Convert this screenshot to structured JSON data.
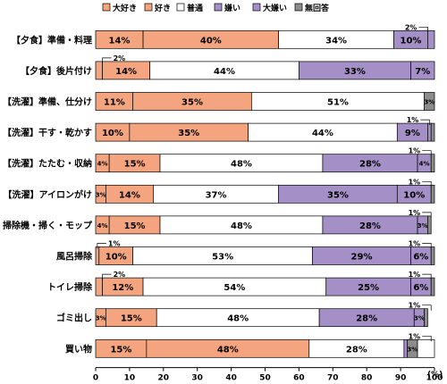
{
  "chart_data": {
    "type": "bar",
    "orientation": "horizontal",
    "stacked": true,
    "categories": [
      "【夕食】準備・料理",
      "【夕食】後片付け",
      "【洗濯】準備、仕分け",
      "【洗濯】干す・乾かす",
      "【洗濯】たたむ・収納",
      "【洗濯】アイロンがけ",
      "掃除機・掃く・モップ",
      "風呂掃除",
      "トイレ掃除",
      "ゴミ出し",
      "買い物"
    ],
    "series": [
      {
        "name": "大好き",
        "color": "#f4a47f",
        "values": [
          14,
          2,
          0,
          1,
          0,
          0,
          0,
          1,
          2,
          0,
          0
        ]
      },
      {
        "name": "好き",
        "color": "#f4a47f",
        "values": [
          40,
          14,
          11,
          10,
          4,
          3,
          4,
          10,
          12,
          3,
          15
        ]
      },
      {
        "name": "普通",
        "color": "#ffffff",
        "values": [
          34,
          44,
          35,
          35,
          15,
          14,
          15,
          53,
          54,
          15,
          48
        ]
      },
      {
        "name": "嫌い",
        "color": "#a48fc7",
        "values": [
          10,
          33,
          51,
          44,
          48,
          37,
          48,
          29,
          25,
          48,
          28
        ]
      },
      {
        "name": "大嫌い",
        "color": "#a48fc7",
        "values": [
          2,
          7,
          0,
          9,
          28,
          35,
          28,
          6,
          6,
          28,
          1
        ]
      },
      {
        "name": "無回答",
        "color": "#8c8c8c",
        "values": [
          0,
          0,
          3,
          1,
          4,
          10,
          3,
          1,
          1,
          3,
          3
        ]
      }
    ],
    "segments": [
      [
        {
          "v": 14,
          "c": "#f4a47f",
          "t": "14%"
        },
        {
          "v": 40,
          "c": "#f4a47f",
          "t": "40%"
        },
        {
          "v": 34,
          "c": "#ffffff",
          "t": "34%"
        },
        {
          "v": 10,
          "c": "#a48fc7",
          "t": "10%"
        },
        {
          "v": 2,
          "c": "#a48fc7",
          "t": ""
        }
      ],
      [
        {
          "v": 2,
          "c": "#f4a47f",
          "t": ""
        },
        {
          "v": 14,
          "c": "#f4a47f",
          "t": "14%"
        },
        {
          "v": 44,
          "c": "#ffffff",
          "t": "44%"
        },
        {
          "v": 33,
          "c": "#a48fc7",
          "t": "33%"
        },
        {
          "v": 7,
          "c": "#a48fc7",
          "t": "7%"
        }
      ],
      [
        {
          "v": 11,
          "c": "#f4a47f",
          "t": "11%"
        },
        {
          "v": 35,
          "c": "#f4a47f",
          "t": "35%"
        },
        {
          "v": 51,
          "c": "#ffffff",
          "t": "51%"
        },
        {
          "v": 3,
          "c": "#8c8c8c",
          "t": "3%"
        }
      ],
      [
        {
          "v": 10,
          "c": "#f4a47f",
          "t": "10%"
        },
        {
          "v": 35,
          "c": "#f4a47f",
          "t": "35%"
        },
        {
          "v": 44,
          "c": "#ffffff",
          "t": "44%"
        },
        {
          "v": 9,
          "c": "#a48fc7",
          "t": "9%"
        },
        {
          "v": 1,
          "c": "#a48fc7",
          "t": ""
        },
        {
          "v": 1,
          "c": "#8c8c8c",
          "t": ""
        }
      ],
      [
        {
          "v": 4,
          "c": "#f4a47f",
          "t": "4%"
        },
        {
          "v": 15,
          "c": "#f4a47f",
          "t": "15%"
        },
        {
          "v": 48,
          "c": "#ffffff",
          "t": "48%"
        },
        {
          "v": 28,
          "c": "#a48fc7",
          "t": "28%"
        },
        {
          "v": 4,
          "c": "#a48fc7",
          "t": "4%"
        },
        {
          "v": 1,
          "c": "#8c8c8c",
          "t": ""
        }
      ],
      [
        {
          "v": 3,
          "c": "#f4a47f",
          "t": "3%"
        },
        {
          "v": 14,
          "c": "#f4a47f",
          "t": "14%"
        },
        {
          "v": 37,
          "c": "#ffffff",
          "t": "37%"
        },
        {
          "v": 35,
          "c": "#a48fc7",
          "t": "35%"
        },
        {
          "v": 10,
          "c": "#a48fc7",
          "t": "10%"
        },
        {
          "v": 1,
          "c": "#8c8c8c",
          "t": ""
        }
      ],
      [
        {
          "v": 4,
          "c": "#f4a47f",
          "t": "4%"
        },
        {
          "v": 15,
          "c": "#f4a47f",
          "t": "15%"
        },
        {
          "v": 48,
          "c": "#ffffff",
          "t": "48%"
        },
        {
          "v": 28,
          "c": "#a48fc7",
          "t": "28%"
        },
        {
          "v": 3,
          "c": "#a48fc7",
          "t": "3%"
        },
        {
          "v": 1,
          "c": "#8c8c8c",
          "t": ""
        }
      ],
      [
        {
          "v": 1,
          "c": "#f4a47f",
          "t": ""
        },
        {
          "v": 10,
          "c": "#f4a47f",
          "t": "10%"
        },
        {
          "v": 53,
          "c": "#ffffff",
          "t": "53%"
        },
        {
          "v": 29,
          "c": "#a48fc7",
          "t": "29%"
        },
        {
          "v": 6,
          "c": "#a48fc7",
          "t": "6%"
        },
        {
          "v": 1,
          "c": "#8c8c8c",
          "t": ""
        }
      ],
      [
        {
          "v": 2,
          "c": "#f4a47f",
          "t": ""
        },
        {
          "v": 12,
          "c": "#f4a47f",
          "t": "12%"
        },
        {
          "v": 54,
          "c": "#ffffff",
          "t": "54%"
        },
        {
          "v": 25,
          "c": "#a48fc7",
          "t": "25%"
        },
        {
          "v": 6,
          "c": "#a48fc7",
          "t": "6%"
        },
        {
          "v": 1,
          "c": "#8c8c8c",
          "t": ""
        }
      ],
      [
        {
          "v": 3,
          "c": "#f4a47f",
          "t": "3%"
        },
        {
          "v": 15,
          "c": "#f4a47f",
          "t": "15%"
        },
        {
          "v": 48,
          "c": "#ffffff",
          "t": "48%"
        },
        {
          "v": 28,
          "c": "#a48fc7",
          "t": "28%"
        },
        {
          "v": 3,
          "c": "#a48fc7",
          "t": "3%"
        },
        {
          "v": 1,
          "c": "#8c8c8c",
          "t": ""
        }
      ],
      [
        {
          "v": 15,
          "c": "#f4a47f",
          "t": "15%"
        },
        {
          "v": 48,
          "c": "#f4a47f",
          "t": "48%"
        },
        {
          "v": 28,
          "c": "#ffffff",
          "t": "28%"
        },
        {
          "v": 1,
          "c": "#a48fc7",
          "t": ""
        },
        {
          "v": 3,
          "c": "#8c8c8c",
          "t": "3%"
        },
        {
          "v": 5,
          "c": "#ffffff",
          "t": ""
        }
      ]
    ],
    "callouts": [
      {
        "row": 0,
        "text": "2%",
        "at": 98
      },
      {
        "row": 1,
        "text": "2%",
        "at": 2
      },
      {
        "row": 3,
        "text": "1%",
        "at": 98.5
      },
      {
        "row": 4,
        "text": "1%",
        "at": 99
      },
      {
        "row": 5,
        "text": "1%",
        "at": 99
      },
      {
        "row": 6,
        "text": "1%",
        "at": 99
      },
      {
        "row": 7,
        "text": "1%",
        "at": 0.5
      },
      {
        "row": 7,
        "text": "1%",
        "at": 99
      },
      {
        "row": 8,
        "text": "2%",
        "at": 2
      },
      {
        "row": 8,
        "text": "1%",
        "at": 99
      },
      {
        "row": 9,
        "text": "1%",
        "at": 99
      },
      {
        "row": 10,
        "text": "1%",
        "at": 99
      }
    ],
    "legend": [
      {
        "name": "大好き",
        "color": "#f4a47f"
      },
      {
        "name": "好き",
        "color": "#f4a47f"
      },
      {
        "name": "普通",
        "color": "#ffffff"
      },
      {
        "name": "嫌い",
        "color": "#a48fc7"
      },
      {
        "name": "大嫌い",
        "color": "#a48fc7"
      },
      {
        "name": "無回答",
        "color": "#8c8c8c"
      }
    ],
    "legend_position": "top",
    "x_ticks": [
      0,
      10,
      20,
      30,
      40,
      50,
      60,
      70,
      80,
      90,
      100
    ],
    "xlim": [
      0,
      100
    ],
    "xunit": "(%)",
    "grid": false
  }
}
